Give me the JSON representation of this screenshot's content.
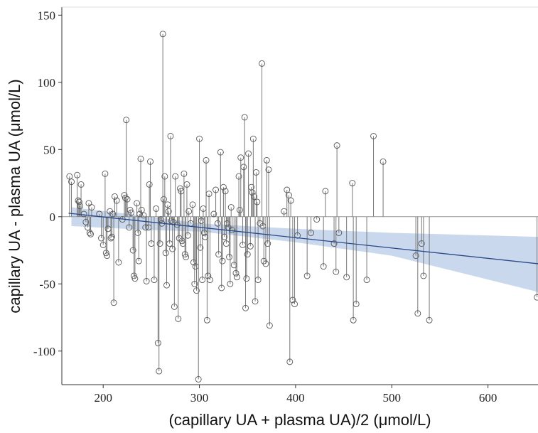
{
  "chart_data": {
    "type": "scatter",
    "x_label": "(capillary UA + plasma UA)/2 (μmol/L)",
    "y_label": "capillary UA - plasma UA (μmol/L)",
    "xlim": [
      157,
      652
    ],
    "ylim": [
      -125,
      156
    ],
    "xticks": [
      200,
      300,
      400,
      500,
      600
    ],
    "yticks": [
      -100,
      -50,
      0,
      50,
      100,
      150
    ],
    "reference_line": 0,
    "drop_lines": true,
    "series": [
      {
        "color": "#555555",
        "x": [
          165,
          167,
          173,
          174,
          175,
          176,
          177,
          180,
          182,
          184,
          185,
          186,
          187,
          188,
          196,
          198,
          200,
          202,
          203,
          204,
          205,
          207,
          208,
          209,
          210,
          211,
          212,
          214,
          216,
          220,
          222,
          223,
          224,
          225,
          227,
          228,
          229,
          231,
          232,
          233,
          235,
          236,
          237,
          238,
          239,
          240,
          242,
          244,
          245,
          247,
          248,
          249,
          250,
          253,
          255,
          257,
          258,
          259,
          260,
          261,
          262,
          263,
          264,
          265,
          266,
          267,
          268,
          269,
          270,
          271,
          272,
          273,
          274,
          275,
          277,
          278,
          279,
          280,
          281,
          282,
          283,
          284,
          285,
          286,
          287,
          288,
          289,
          291,
          293,
          294,
          295,
          296,
          297,
          299,
          300,
          301,
          302,
          303,
          304,
          305,
          306,
          307,
          308,
          309,
          310,
          311,
          315,
          317,
          319,
          320,
          322,
          323,
          324,
          325,
          326,
          327,
          328,
          329,
          330,
          331,
          332,
          333,
          334,
          336,
          338,
          339,
          341,
          342,
          343,
          345,
          346,
          347,
          348,
          349,
          350,
          351,
          353,
          354,
          355,
          356,
          357,
          358,
          359,
          360,
          361,
          363,
          365,
          366,
          367,
          369,
          370,
          371,
          372,
          373,
          388,
          391,
          393,
          395,
          394,
          397,
          399,
          402,
          412,
          416,
          422,
          429,
          431,
          440,
          442,
          443,
          445,
          453,
          459,
          460,
          463,
          474,
          481,
          491,
          525,
          527,
          531,
          533,
          539,
          651
        ],
        "values": [
          30,
          26,
          31,
          12,
          11,
          8,
          24,
          2,
          -4,
          -8,
          10,
          -12,
          -13,
          7,
          2,
          -16,
          -21,
          32,
          -27,
          -29,
          -9,
          4,
          -16,
          -15,
          2,
          -64,
          15,
          12,
          -34,
          -2,
          16,
          14,
          72,
          13,
          -8,
          5,
          3,
          -25,
          -44,
          -46,
          10,
          -12,
          -33,
          2,
          43,
          5,
          1,
          -8,
          -48,
          -8,
          24,
          41,
          -20,
          -47,
          6,
          -94,
          -115,
          -20,
          -2,
          -5,
          136,
          13,
          30,
          -27,
          -51,
          9,
          4,
          -20,
          60,
          -3,
          -24,
          -4,
          -67,
          30,
          -6,
          -76,
          -16,
          21,
          19,
          -18,
          -20,
          32,
          -28,
          -30,
          24,
          -14,
          4,
          -5,
          9,
          -34,
          -50,
          -37,
          -55,
          -121,
          58,
          -23,
          -3,
          -47,
          6,
          -12,
          -15,
          42,
          -77,
          -44,
          17,
          -47,
          2,
          20,
          -5,
          -28,
          48,
          -53,
          -33,
          22,
          -15,
          19,
          -20,
          -5,
          -8,
          -30,
          -50,
          7,
          -10,
          -36,
          -42,
          -45,
          30,
          5,
          44,
          -21,
          37,
          74,
          -68,
          -46,
          -28,
          47,
          -22,
          22,
          18,
          58,
          15,
          -63,
          33,
          11,
          -47,
          -5,
          114,
          -7,
          -33,
          -35,
          42,
          -20,
          35,
          -81,
          4,
          20,
          16,
          12,
          -108,
          -62,
          -65,
          -14,
          -44,
          -12,
          -2,
          -37,
          19,
          -20,
          -41,
          53,
          -12,
          -45,
          25,
          -77,
          -65,
          -47,
          60,
          41,
          -29,
          -72,
          -20,
          -44,
          -77,
          -60
        ]
      }
    ],
    "regression": {
      "color": "#2b4a8a",
      "x": [
        164,
        652
      ],
      "values": [
        2.6,
        -35
      ]
    },
    "band": {
      "color": "#c9d8ec",
      "x": [
        167,
        250,
        300,
        400,
        500,
        652
      ],
      "upper": [
        7,
        0,
        -5,
        -9,
        -12,
        -15
      ],
      "lower": [
        -7,
        -10,
        -11,
        -19,
        -29,
        -56
      ]
    }
  }
}
